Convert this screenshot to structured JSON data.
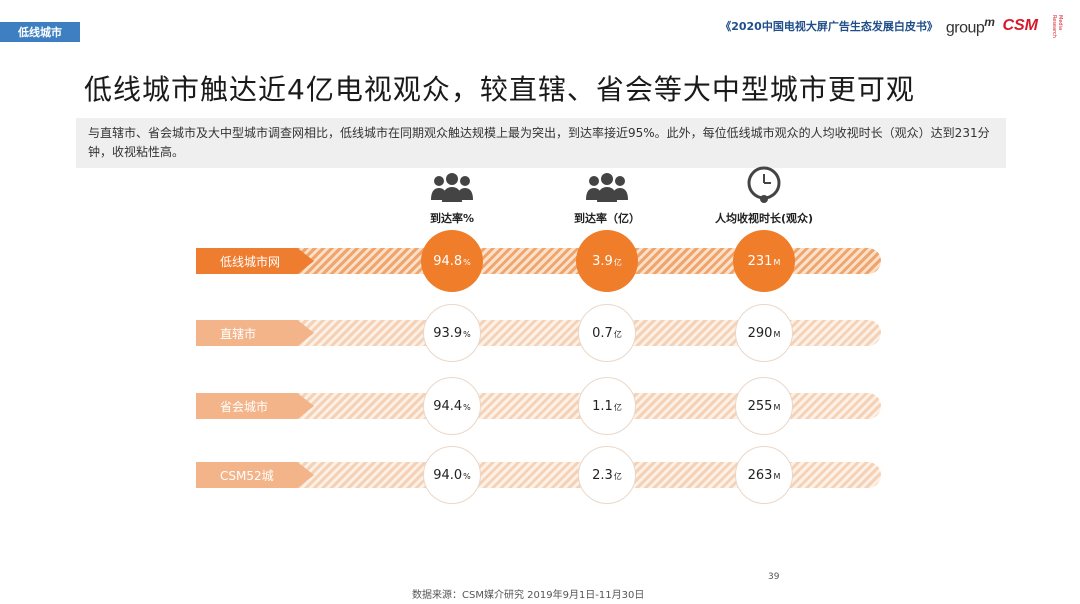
{
  "section_tag": "低线城市",
  "header": {
    "report_title": "《2020中国电视大屏广告生态发展白皮书》",
    "logo_groupm": "group",
    "logo_groupm_m": "m",
    "logo_csm": "CSM",
    "logo_csm_sub": "Media Research"
  },
  "title": "低线城市触达近4亿电视观众，较直辖、省会等大中型城市更可观",
  "description": "与直辖市、省会城市及大中型城市调查网相比，低线城市在同期观众触达规模上最为突出，到达率接近95%。此外，每位低线城市观众的人均收视时长（观众）达到231分钟，收视粘性高。",
  "columns": [
    {
      "label": "到达率%",
      "icon": "audience-group-icon"
    },
    {
      "label": "到达率（亿）",
      "icon": "audience-group-icon"
    },
    {
      "label": "人均收视时长(观众)",
      "icon": "clock-person-icon"
    }
  ],
  "rows": [
    {
      "name": "低线城市网",
      "highlight": true,
      "values": [
        {
          "v": "94.8",
          "u": "%"
        },
        {
          "v": "3.9",
          "u": "亿"
        },
        {
          "v": "231",
          "u": "M"
        }
      ]
    },
    {
      "name": "直辖市",
      "highlight": false,
      "values": [
        {
          "v": "93.9",
          "u": "%"
        },
        {
          "v": "0.7",
          "u": "亿"
        },
        {
          "v": "290",
          "u": "M"
        }
      ]
    },
    {
      "name": "省会城市",
      "highlight": false,
      "values": [
        {
          "v": "94.4",
          "u": "%"
        },
        {
          "v": "1.1",
          "u": "亿"
        },
        {
          "v": "255",
          "u": "M"
        }
      ]
    },
    {
      "name": "CSM52城",
      "highlight": false,
      "values": [
        {
          "v": "94.0",
          "u": "%"
        },
        {
          "v": "2.3",
          "u": "亿"
        },
        {
          "v": "263",
          "u": "M"
        }
      ]
    }
  ],
  "colors": {
    "accent": "#f07d2a",
    "label_hi": "#ef7d30",
    "label_lo": "#f3b48a",
    "tag": "#3d7fc1"
  },
  "page_number": "39",
  "source": "数据来源：CSM媒介研究  2019年9月1日-11月30日"
}
